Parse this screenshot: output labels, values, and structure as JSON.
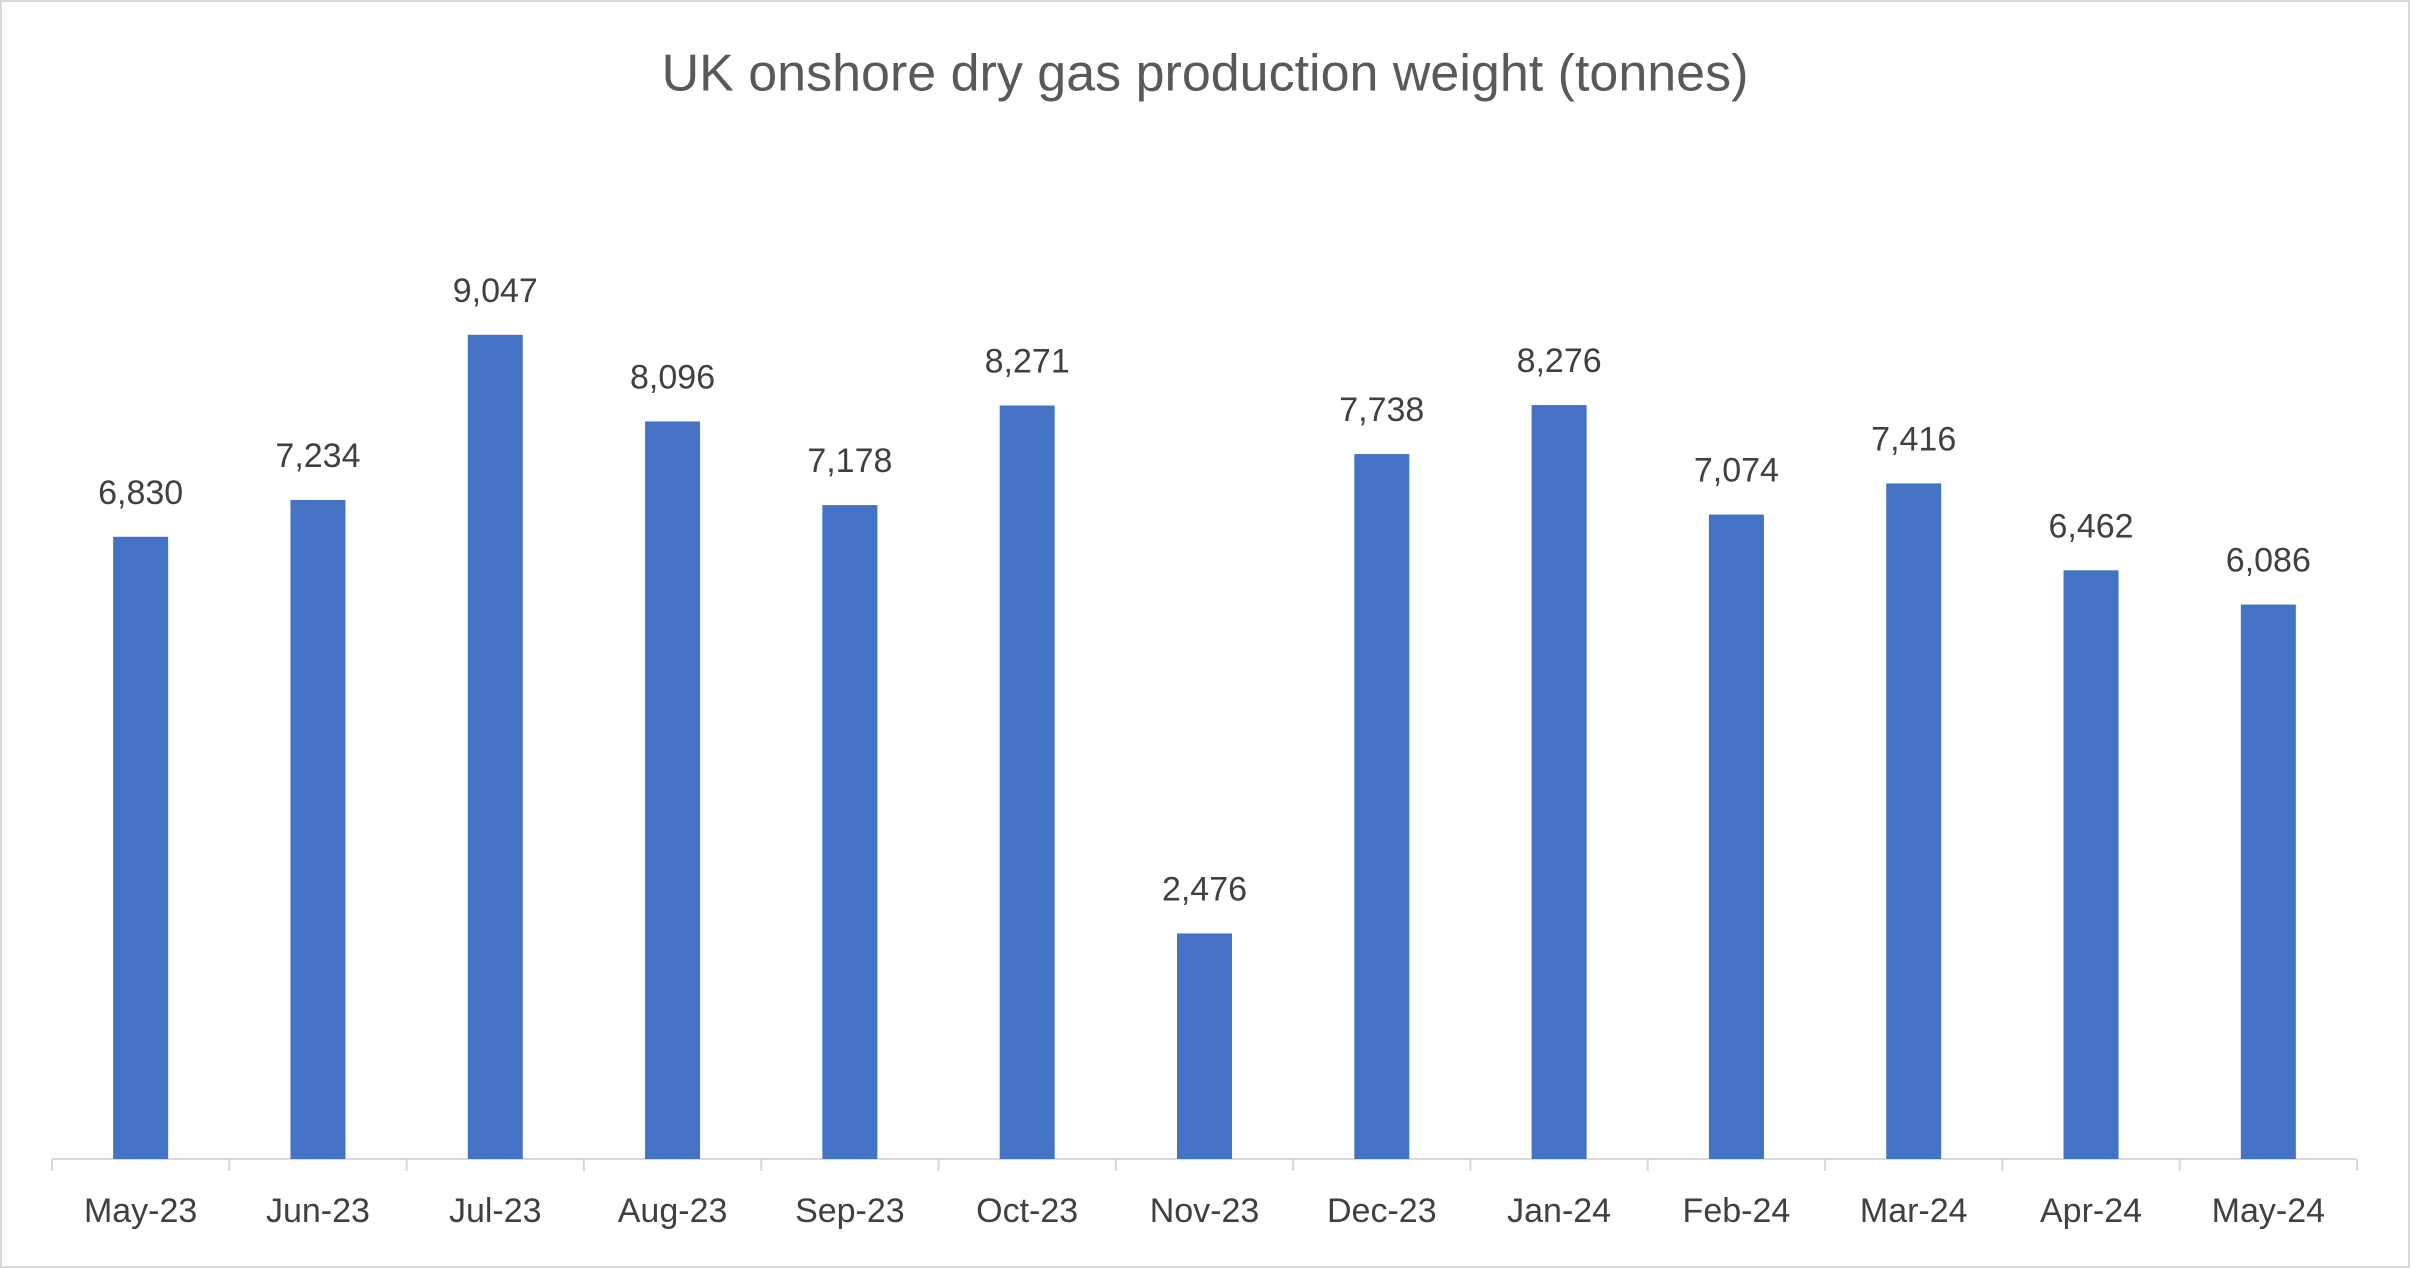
{
  "chart_data": {
    "type": "bar",
    "title": "UK onshore dry gas production weight (tonnes)",
    "categories": [
      "May-23",
      "Jun-23",
      "Jul-23",
      "Aug-23",
      "Sep-23",
      "Oct-23",
      "Nov-23",
      "Dec-23",
      "Jan-24",
      "Feb-24",
      "Mar-24",
      "Apr-24",
      "May-24"
    ],
    "values": [
      6830,
      7234,
      9047,
      8096,
      7178,
      8271,
      2476,
      7738,
      8276,
      7074,
      7416,
      6462,
      6086
    ],
    "value_labels": [
      "6,830",
      "7,234",
      "9,047",
      "8,096",
      "7,178",
      "8,271",
      "2,476",
      "7,738",
      "8,276",
      "7,074",
      "7,416",
      "6,462",
      "6,086"
    ],
    "color": "#4472c4",
    "ylim": [
      0,
      10000
    ],
    "grid": false
  }
}
